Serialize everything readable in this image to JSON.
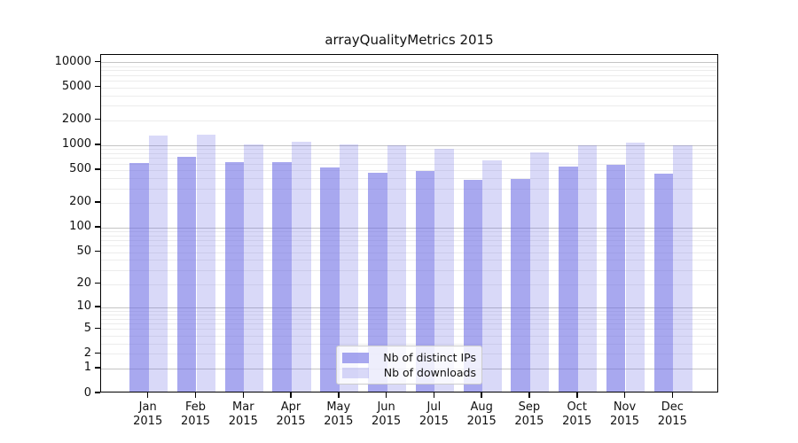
{
  "figure": {
    "title": "arrayQualityMetrics 2015"
  },
  "legend": {
    "items": [
      {
        "label": "Nb of distinct IPs",
        "series_key": "distinct-ips"
      },
      {
        "label": "Nb of downloads",
        "series_key": "downloads"
      }
    ]
  },
  "axes": {
    "y_tick_labels": [
      "10000",
      "5000",
      "2000",
      "1000",
      "500",
      "200",
      "100",
      "50",
      "20",
      "10",
      "5",
      "2",
      "1",
      "0"
    ],
    "x_tick_labels": [
      "Jan\n2015",
      "Feb\n2015",
      "Mar\n2015",
      "Apr\n2015",
      "May\n2015",
      "Jun\n2015",
      "Jul\n2015",
      "Aug\n2015",
      "Sep\n2015",
      "Oct\n2015",
      "Nov\n2015",
      "Dec\n2015"
    ]
  },
  "colors": {
    "series_dark": "rgba(110,110,228,0.60)",
    "series_light": "rgba(110,110,228,0.26)",
    "grid_major": "#c4c4c4",
    "grid_minor": "#ececec",
    "spine": "#000000",
    "background": "#ffffff"
  },
  "chart_data": {
    "type": "bar",
    "title": "arrayQualityMetrics 2015",
    "categories": [
      "Jan 2015",
      "Feb 2015",
      "Mar 2015",
      "Apr 2015",
      "May 2015",
      "Jun 2015",
      "Jul 2015",
      "Aug 2015",
      "Sep 2015",
      "Oct 2015",
      "Nov 2015",
      "Dec 2015"
    ],
    "series": [
      {
        "name": "Nb of distinct IPs",
        "values": [
          580,
          685,
          600,
          590,
          510,
          440,
          465,
          360,
          370,
          520,
          555,
          430
        ]
      },
      {
        "name": "Nb of downloads",
        "values": [
          1230,
          1280,
          960,
          1050,
          980,
          940,
          865,
          625,
          770,
          945,
          1015,
          945
        ]
      }
    ],
    "xlabel": "",
    "ylabel": "",
    "yscale": "log1p",
    "ylim": [
      0,
      12300
    ],
    "yticks": [
      0,
      1,
      2,
      5,
      10,
      20,
      50,
      100,
      200,
      500,
      1000,
      2000,
      5000,
      10000
    ],
    "grid": true,
    "legend_position": "lower center inside"
  }
}
